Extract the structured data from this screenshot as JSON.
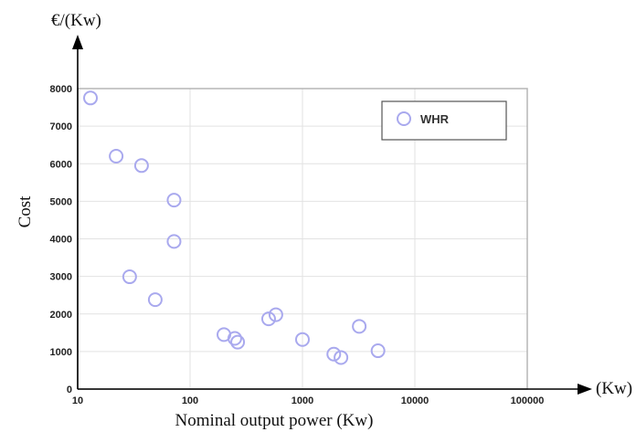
{
  "chart_data": {
    "type": "scatter",
    "x_scale": "log",
    "xlim": [
      10,
      100000
    ],
    "ylim": [
      0,
      8000
    ],
    "x_ticks": [
      "10",
      "100",
      "1000",
      "10000",
      "100000"
    ],
    "y_ticks": [
      "0",
      "1000",
      "2000",
      "3000",
      "4000",
      "5000",
      "6000",
      "7000",
      "8000"
    ],
    "y_tick_values": [
      0,
      1000,
      2000,
      3000,
      4000,
      5000,
      6000,
      7000,
      8000
    ],
    "x_tick_values": [
      10,
      100,
      1000,
      10000,
      100000
    ],
    "xlabel": "Nominal output power (Kw)",
    "ylabel": "Cost",
    "y_unit_label": "€/(Kw)",
    "x_unit_label": "(Kw)",
    "grid": true,
    "legend_position": "top-right",
    "marker_color": "#a9a9ee",
    "series": [
      {
        "name": "WHR",
        "points": [
          {
            "x": 13,
            "y": 7750
          },
          {
            "x": 22,
            "y": 6200
          },
          {
            "x": 37,
            "y": 5950
          },
          {
            "x": 72,
            "y": 5030
          },
          {
            "x": 72,
            "y": 3930
          },
          {
            "x": 29,
            "y": 2990
          },
          {
            "x": 49,
            "y": 2380
          },
          {
            "x": 200,
            "y": 1450
          },
          {
            "x": 250,
            "y": 1350
          },
          {
            "x": 265,
            "y": 1250
          },
          {
            "x": 500,
            "y": 1870
          },
          {
            "x": 580,
            "y": 1980
          },
          {
            "x": 1000,
            "y": 1320
          },
          {
            "x": 1900,
            "y": 930
          },
          {
            "x": 2200,
            "y": 840
          },
          {
            "x": 3200,
            "y": 1670
          },
          {
            "x": 4700,
            "y": 1020
          }
        ]
      }
    ]
  }
}
